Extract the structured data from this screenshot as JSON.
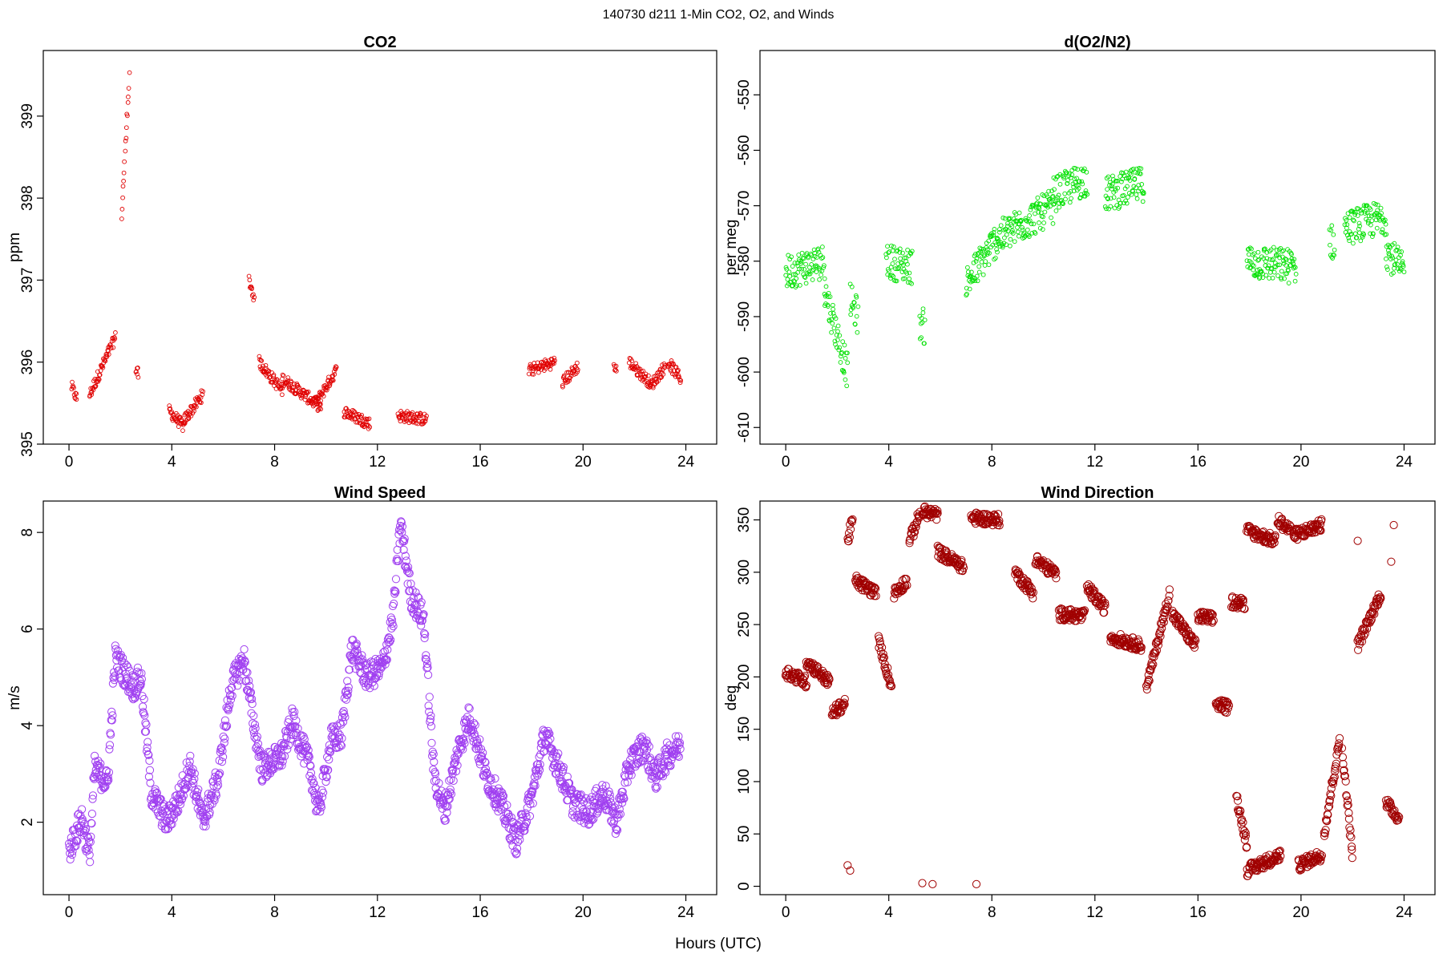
{
  "figure": {
    "title": "140730   d211   1-Min CO2, O2, and Winds",
    "xlabel": "Hours (UTC)"
  },
  "chart_data": [
    {
      "id": "co2",
      "type": "scatter",
      "title": "CO2",
      "xlabel": "",
      "ylabel": "ppm",
      "xlim": [
        -1,
        25.2
      ],
      "ylim": [
        395,
        399.8
      ],
      "x_ticks": [
        0,
        4,
        8,
        12,
        16,
        20,
        24
      ],
      "y_ticks": [
        395,
        396,
        397,
        398,
        399
      ],
      "color": "#e00000",
      "marker": "open-circle-small",
      "segments": [
        {
          "x": [
            0.1,
            0.3
          ],
          "y": [
            395.7,
            395.55
          ]
        },
        {
          "x": [
            0.8,
            1.8
          ],
          "y": [
            395.6,
            396.3
          ]
        },
        {
          "x": [
            2.05,
            2.35
          ],
          "y": [
            397.8,
            399.5
          ]
        },
        {
          "x": [
            2.6,
            2.7
          ],
          "y": [
            395.9,
            395.85
          ]
        },
        {
          "x": [
            3.9,
            4.5
          ],
          "y": [
            395.4,
            395.2
          ]
        },
        {
          "x": [
            4.5,
            5.2
          ],
          "y": [
            395.3,
            395.6
          ]
        },
        {
          "x": [
            7.0,
            7.2
          ],
          "y": [
            397.0,
            396.8
          ]
        },
        {
          "x": [
            7.4,
            8.3
          ],
          "y": [
            396.0,
            395.65
          ]
        },
        {
          "x": [
            8.3,
            9.8
          ],
          "y": [
            395.8,
            395.45
          ]
        },
        {
          "x": [
            9.6,
            10.4
          ],
          "y": [
            395.5,
            395.9
          ]
        },
        {
          "x": [
            10.7,
            11.7
          ],
          "y": [
            395.4,
            395.25
          ]
        },
        {
          "x": [
            12.8,
            13.9
          ],
          "y": [
            395.35,
            395.3
          ]
        },
        {
          "x": [
            17.9,
            18.9
          ],
          "y": [
            395.9,
            396.0
          ]
        },
        {
          "x": [
            19.2,
            19.8
          ],
          "y": [
            395.75,
            395.95
          ]
        },
        {
          "x": [
            21.2,
            21.3
          ],
          "y": [
            395.95,
            395.9
          ]
        },
        {
          "x": [
            21.8,
            22.6
          ],
          "y": [
            396.0,
            395.75
          ]
        },
        {
          "x": [
            22.6,
            23.2
          ],
          "y": [
            395.7,
            395.95
          ]
        },
        {
          "x": [
            23.3,
            23.8
          ],
          "y": [
            396.0,
            395.8
          ]
        }
      ]
    },
    {
      "id": "o2",
      "type": "scatter",
      "title": "d(O2/N2)",
      "xlabel": "",
      "ylabel": "per meg",
      "xlim": [
        -1,
        25.2
      ],
      "ylim": [
        -613,
        -542
      ],
      "x_ticks": [
        0,
        4,
        8,
        12,
        16,
        20,
        24
      ],
      "y_ticks": [
        -550,
        -560,
        -570,
        -580,
        -590,
        -600,
        -610
      ],
      "color": "#00e000",
      "marker": "open-circle-small",
      "segments": [
        {
          "x": [
            0.0,
            1.5
          ],
          "y": [
            -582,
            -580
          ]
        },
        {
          "x": [
            1.5,
            2.4
          ],
          "y": [
            -585,
            -600
          ]
        },
        {
          "x": [
            2.5,
            2.8
          ],
          "y": [
            -587,
            -590
          ]
        },
        {
          "x": [
            3.9,
            4.9
          ],
          "y": [
            -580,
            -581
          ]
        },
        {
          "x": [
            5.2,
            5.4
          ],
          "y": [
            -591,
            -592
          ]
        },
        {
          "x": [
            7.0,
            8.2
          ],
          "y": [
            -584,
            -576
          ]
        },
        {
          "x": [
            8.2,
            10.4
          ],
          "y": [
            -576,
            -570
          ]
        },
        {
          "x": [
            10.4,
            11.7
          ],
          "y": [
            -568,
            -565
          ]
        },
        {
          "x": [
            12.4,
            13.9
          ],
          "y": [
            -568,
            -566
          ]
        },
        {
          "x": [
            17.9,
            19.8
          ],
          "y": [
            -580,
            -581
          ]
        },
        {
          "x": [
            21.1,
            21.3
          ],
          "y": [
            -576,
            -577
          ]
        },
        {
          "x": [
            21.7,
            23.3
          ],
          "y": [
            -574,
            -572
          ]
        },
        {
          "x": [
            23.3,
            24.0
          ],
          "y": [
            -578,
            -582
          ]
        }
      ]
    },
    {
      "id": "wind_speed",
      "type": "scatter",
      "title": "Wind Speed",
      "xlabel": "",
      "ylabel": "m/s",
      "xlim": [
        -1,
        25.2
      ],
      "ylim": [
        0.5,
        8.65
      ],
      "x_ticks": [
        0,
        4,
        8,
        12,
        16,
        20,
        24
      ],
      "y_ticks": [
        2,
        4,
        6,
        8
      ],
      "color": "#a040f0",
      "marker": "open-circle",
      "path": [
        [
          0.0,
          1.4
        ],
        [
          0.5,
          2.1
        ],
        [
          0.8,
          1.3
        ],
        [
          1.0,
          3.1
        ],
        [
          1.5,
          2.8
        ],
        [
          1.8,
          5.4
        ],
        [
          2.5,
          4.8
        ],
        [
          2.8,
          5.0
        ],
        [
          3.2,
          2.6
        ],
        [
          3.8,
          2.0
        ],
        [
          4.3,
          2.5
        ],
        [
          4.7,
          3.2
        ],
        [
          5.2,
          2.0
        ],
        [
          5.8,
          2.9
        ],
        [
          6.3,
          4.8
        ],
        [
          6.8,
          5.4
        ],
        [
          7.2,
          4.0
        ],
        [
          7.5,
          3.1
        ],
        [
          8.3,
          3.4
        ],
        [
          8.7,
          4.1
        ],
        [
          9.4,
          3.1
        ],
        [
          9.7,
          2.2
        ],
        [
          10.2,
          3.7
        ],
        [
          10.6,
          3.8
        ],
        [
          11.0,
          5.6
        ],
        [
          11.6,
          5.0
        ],
        [
          12.2,
          5.2
        ],
        [
          12.6,
          6.2
        ],
        [
          12.9,
          8.2
        ],
        [
          13.3,
          6.7
        ],
        [
          13.8,
          6.2
        ],
        [
          14.2,
          3.0
        ],
        [
          14.6,
          2.2
        ],
        [
          15.2,
          3.6
        ],
        [
          15.6,
          4.2
        ],
        [
          16.2,
          3.0
        ],
        [
          16.8,
          2.4
        ],
        [
          17.4,
          1.6
        ],
        [
          18.0,
          2.5
        ],
        [
          18.5,
          3.8
        ],
        [
          19.0,
          3.2
        ],
        [
          19.6,
          2.4
        ],
        [
          20.2,
          2.2
        ],
        [
          20.8,
          2.6
        ],
        [
          21.3,
          2.0
        ],
        [
          21.8,
          3.2
        ],
        [
          22.4,
          3.6
        ],
        [
          22.8,
          2.9
        ],
        [
          23.3,
          3.4
        ],
        [
          23.8,
          3.6
        ]
      ]
    },
    {
      "id": "wind_direction",
      "type": "scatter",
      "title": "Wind Direction",
      "xlabel": "",
      "ylabel": "deg",
      "xlim": [
        -1,
        25.2
      ],
      "ylim": [
        -8,
        368
      ],
      "x_ticks": [
        0,
        4,
        8,
        12,
        16,
        20,
        24
      ],
      "y_ticks": [
        0,
        50,
        100,
        150,
        200,
        250,
        300,
        350
      ],
      "color": "#a00000",
      "marker": "open-circle",
      "segments": [
        {
          "x": [
            0.0,
            0.8
          ],
          "y": [
            205,
            195
          ]
        },
        {
          "x": [
            0.8,
            1.7
          ],
          "y": [
            215,
            195
          ]
        },
        {
          "x": [
            1.8,
            2.3
          ],
          "y": [
            165,
            175
          ]
        },
        {
          "x": [
            2.4,
            2.6
          ],
          "y": [
            330,
            350
          ]
        },
        {
          "x": [
            2.7,
            3.5
          ],
          "y": [
            292,
            280
          ]
        },
        {
          "x": [
            3.6,
            4.1
          ],
          "y": [
            235,
            190
          ]
        },
        {
          "x": [
            4.2,
            4.7
          ],
          "y": [
            280,
            292
          ]
        },
        {
          "x": [
            4.8,
            5.2
          ],
          "y": [
            330,
            355
          ]
        },
        {
          "x": [
            5.3,
            5.9
          ],
          "y": [
            358,
            355
          ]
        },
        {
          "x": [
            5.9,
            6.9
          ],
          "y": [
            320,
            305
          ]
        },
        {
          "x": [
            7.2,
            8.3
          ],
          "y": [
            352,
            350
          ]
        },
        {
          "x": [
            8.9,
            9.6
          ],
          "y": [
            300,
            280
          ]
        },
        {
          "x": [
            9.7,
            10.5
          ],
          "y": [
            312,
            298
          ]
        },
        {
          "x": [
            10.6,
            11.6
          ],
          "y": [
            260,
            258
          ]
        },
        {
          "x": [
            11.7,
            12.4
          ],
          "y": [
            285,
            265
          ]
        },
        {
          "x": [
            12.6,
            13.8
          ],
          "y": [
            238,
            230
          ]
        },
        {
          "x": [
            14.0,
            14.9
          ],
          "y": [
            190,
            280
          ]
        },
        {
          "x": [
            15.0,
            15.9
          ],
          "y": [
            260,
            230
          ]
        },
        {
          "x": [
            16.0,
            16.6
          ],
          "y": [
            258,
            255
          ]
        },
        {
          "x": [
            16.7,
            17.2
          ],
          "y": [
            175,
            170
          ]
        },
        {
          "x": [
            17.3,
            17.8
          ],
          "y": [
            272,
            270
          ]
        },
        {
          "x": [
            17.5,
            17.9
          ],
          "y": [
            85,
            40
          ]
        },
        {
          "x": [
            17.9,
            19.2
          ],
          "y": [
            15,
            30
          ]
        },
        {
          "x": [
            17.9,
            19.0
          ],
          "y": [
            340,
            330
          ]
        },
        {
          "x": [
            19.1,
            19.6
          ],
          "y": [
            350,
            340
          ]
        },
        {
          "x": [
            19.7,
            20.8
          ],
          "y": [
            335,
            345
          ]
        },
        {
          "x": [
            19.9,
            20.8
          ],
          "y": [
            20,
            30
          ]
        },
        {
          "x": [
            20.9,
            21.5
          ],
          "y": [
            50,
            140
          ]
        },
        {
          "x": [
            21.6,
            22.0
          ],
          "y": [
            130,
            30
          ]
        },
        {
          "x": [
            22.2,
            23.1
          ],
          "y": [
            230,
            280
          ]
        },
        {
          "x": [
            23.3,
            23.8
          ],
          "y": [
            80,
            65
          ]
        }
      ],
      "isolated": [
        [
          2.4,
          20
        ],
        [
          2.5,
          15
        ],
        [
          5.3,
          3
        ],
        [
          5.7,
          2
        ],
        [
          7.4,
          2
        ],
        [
          22.2,
          330
        ],
        [
          23.6,
          345
        ],
        [
          23.5,
          310
        ]
      ]
    }
  ]
}
